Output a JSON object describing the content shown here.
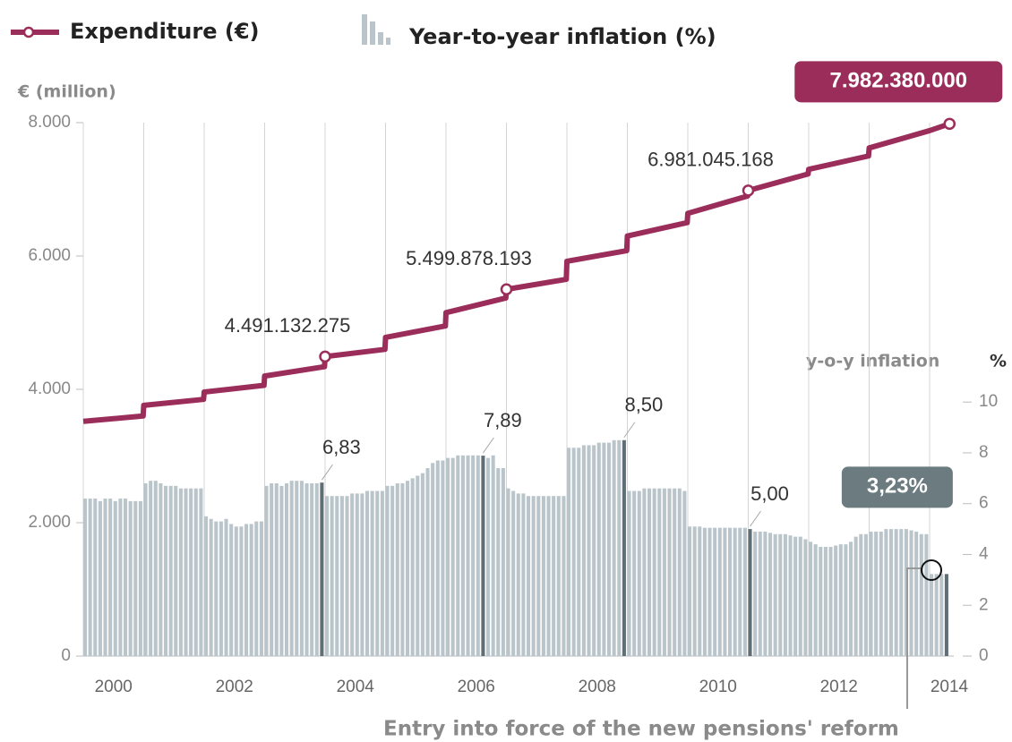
{
  "chart_data": {
    "type": "combo",
    "ylabel": "€ (million)",
    "y2label": "y-o-y inflation",
    "y2unit": "%",
    "annotation": "Entry into force of the new pensions' reform",
    "xlim": [
      2000,
      2014.4
    ],
    "xticks": [
      2000,
      2001,
      2002,
      2003,
      2004,
      2005,
      2006,
      2007,
      2008,
      2009,
      2010,
      2011,
      2012,
      2013,
      2014
    ],
    "xtick_labels": [
      "2000",
      null,
      "2002",
      null,
      "2004",
      null,
      "2006",
      null,
      "2008",
      null,
      "2010",
      null,
      "2012",
      null,
      "2014"
    ],
    "ylim": [
      0,
      8000
    ],
    "yticks": [
      0,
      {
        "value": 2000,
        "label": "2.000"
      },
      {
        "value": 4000,
        "label": "4.000"
      },
      {
        "value": 6000,
        "label": "6.000"
      },
      {
        "value": 8000,
        "label": "8.000"
      }
    ],
    "y2lim": [
      0,
      21
    ],
    "y2ticks": [
      0,
      2,
      4,
      6,
      8,
      10
    ],
    "series": [
      {
        "name": "Expenditure (€)",
        "type": "line",
        "color": "#9b2d5b",
        "x": [
          2000,
          2000.99,
          2001,
          2001.99,
          2002,
          2002.99,
          2003,
          2003.99,
          2004,
          2004.99,
          2005,
          2005.99,
          2006,
          2006.99,
          2007,
          2007.99,
          2008,
          2008.99,
          2009,
          2009.99,
          2010,
          2010.99,
          2011,
          2011.99,
          2012,
          2012.99,
          2013,
          2014,
          2014.33
        ],
        "values": [
          3520,
          3600,
          3760,
          3850,
          3960,
          4060,
          4200,
          4340,
          4491.13,
          4600,
          4780,
          4950,
          5150,
          5370,
          5499.88,
          5650,
          5920,
          6080,
          6300,
          6500,
          6640,
          6900,
          6981.05,
          7230,
          7300,
          7500,
          7620,
          7880,
          7982.38
        ],
        "value_labels": [
          null,
          null,
          null,
          null,
          null,
          null,
          null,
          null,
          "4.491.132.275",
          null,
          null,
          null,
          null,
          null,
          "5.499.878.193",
          null,
          null,
          null,
          null,
          null,
          null,
          null,
          "6.981.045.168",
          null,
          null,
          null,
          null,
          null,
          "7.982.380.000"
        ]
      },
      {
        "name": "Year-to-year inflation (%)",
        "type": "bar",
        "axis": "y2",
        "color": "#b9c5ca",
        "highlight": "#5f6f75",
        "values": [
          6.2,
          6.2,
          6.2,
          6.1,
          6.2,
          6.2,
          6.1,
          6.2,
          6.2,
          6.1,
          6.1,
          6.1,
          6.8,
          6.9,
          6.9,
          6.8,
          6.7,
          6.7,
          6.7,
          6.6,
          6.6,
          6.6,
          6.6,
          6.6,
          5.5,
          5.4,
          5.3,
          5.3,
          5.4,
          5.2,
          5.1,
          5.1,
          5.2,
          5.2,
          5.3,
          5.3,
          6.7,
          6.8,
          6.8,
          6.7,
          6.8,
          6.9,
          6.9,
          6.9,
          6.8,
          6.8,
          6.8,
          6.83,
          6.3,
          6.3,
          6.3,
          6.3,
          6.3,
          6.4,
          6.4,
          6.4,
          6.5,
          6.5,
          6.5,
          6.5,
          6.7,
          6.7,
          6.8,
          6.8,
          6.9,
          7.0,
          7.1,
          7.2,
          7.4,
          7.6,
          7.7,
          7.7,
          7.8,
          7.8,
          7.9,
          7.9,
          7.9,
          7.9,
          7.9,
          7.89,
          7.8,
          7.9,
          7.4,
          7.4,
          6.6,
          6.5,
          6.4,
          6.4,
          6.3,
          6.3,
          6.3,
          6.3,
          6.3,
          6.3,
          6.3,
          6.3,
          8.2,
          8.2,
          8.2,
          8.3,
          8.3,
          8.3,
          8.4,
          8.4,
          8.4,
          8.5,
          8.5,
          8.5,
          6.5,
          6.5,
          6.5,
          6.6,
          6.6,
          6.6,
          6.6,
          6.6,
          6.6,
          6.6,
          6.6,
          6.5,
          5.1,
          5.1,
          5.1,
          5.05,
          5.05,
          5.05,
          5.05,
          5.05,
          5.05,
          5.05,
          5.05,
          5.05,
          5.0,
          4.9,
          4.9,
          4.9,
          4.85,
          4.8,
          4.8,
          4.8,
          4.75,
          4.7,
          4.7,
          4.6,
          4.5,
          4.4,
          4.3,
          4.3,
          4.3,
          4.35,
          4.4,
          4.4,
          4.5,
          4.7,
          4.8,
          4.8,
          4.9,
          4.9,
          4.9,
          5.0,
          5.0,
          5.0,
          5.0,
          5.0,
          4.95,
          4.9,
          4.8,
          4.8,
          3.23,
          3.23,
          3.23,
          3.23
        ],
        "value_labels": [
          null,
          null,
          null,
          null,
          null,
          null,
          null,
          null,
          null,
          null,
          null,
          null,
          null,
          null,
          null,
          null,
          null,
          null,
          null,
          null,
          null,
          null,
          null,
          null,
          null,
          null,
          null,
          null,
          null,
          null,
          null,
          null,
          null,
          null,
          null,
          null,
          null,
          null,
          null,
          null,
          null,
          null,
          null,
          null,
          null,
          null,
          null,
          "6,83",
          null,
          null,
          null,
          null,
          null,
          null,
          null,
          null,
          null,
          null,
          null,
          null,
          null,
          null,
          null,
          null,
          null,
          null,
          null,
          null,
          null,
          null,
          null,
          null,
          null,
          null,
          null,
          null,
          null,
          null,
          null,
          "7,89",
          null,
          null,
          null,
          null,
          null,
          null,
          null,
          null,
          null,
          null,
          null,
          null,
          null,
          null,
          null,
          null,
          null,
          null,
          null,
          null,
          null,
          null,
          null,
          null,
          null,
          null,
          null,
          "8,50",
          null,
          null,
          null,
          null,
          null,
          null,
          null,
          null,
          null,
          null,
          null,
          null,
          null,
          null,
          null,
          null,
          null,
          null,
          null,
          null,
          null,
          null,
          null,
          null,
          "5,00",
          null,
          null,
          null,
          null,
          null,
          null,
          null,
          null,
          null,
          null,
          null,
          null,
          null,
          null,
          null,
          null,
          null,
          null,
          null,
          null,
          null,
          null,
          null,
          null,
          null,
          null,
          null,
          null,
          null,
          null,
          null,
          null,
          null,
          null,
          null,
          null,
          null,
          null,
          "3,23%"
        ]
      }
    ]
  }
}
